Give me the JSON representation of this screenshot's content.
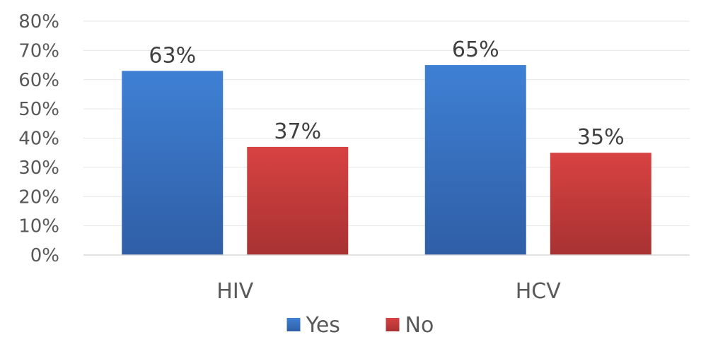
{
  "chart_data": {
    "type": "bar",
    "categories": [
      "HIV",
      "HCV"
    ],
    "series": [
      {
        "name": "Yes",
        "values": [
          63,
          65
        ],
        "labels": [
          "63%",
          "65%"
        ],
        "color": "#3f80d4",
        "color_dark": "#2f5ea6"
      },
      {
        "name": "No",
        "values": [
          37,
          35
        ],
        "labels": [
          "37%",
          "35%"
        ],
        "color": "#d84242",
        "color_dark": "#a83232"
      }
    ],
    "ylim": [
      0,
      80
    ],
    "yticks": [
      "0%",
      "10%",
      "20%",
      "30%",
      "40%",
      "50%",
      "60%",
      "70%",
      "80%"
    ],
    "grid": true,
    "legend_position": "bottom-center",
    "xlabel": "",
    "ylabel": ""
  }
}
